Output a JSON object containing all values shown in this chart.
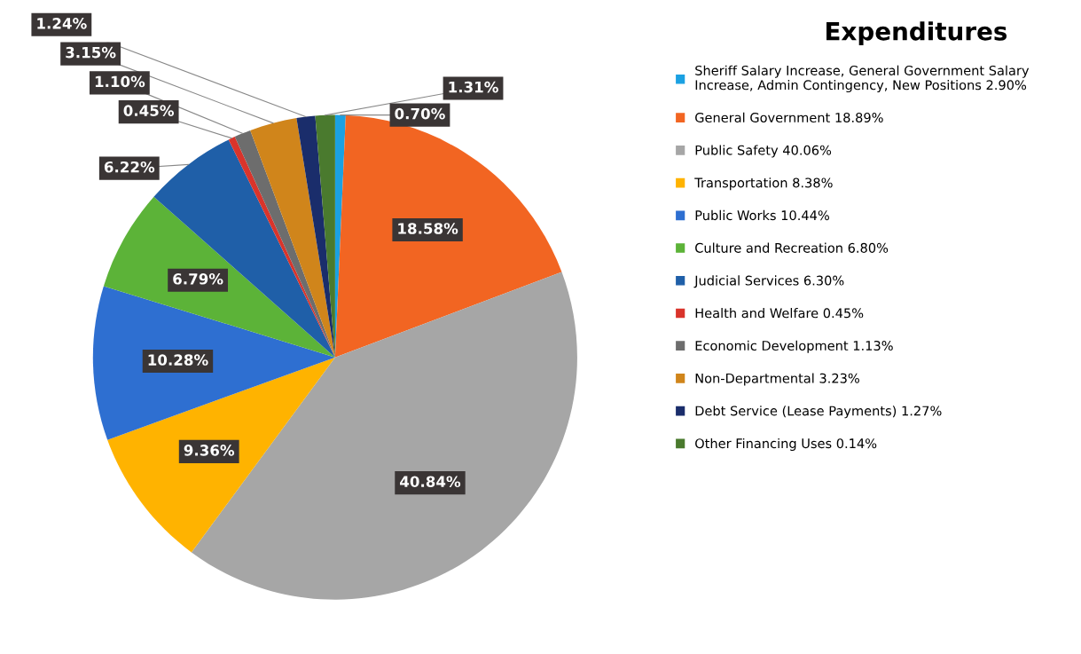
{
  "chart_data": {
    "type": "pie",
    "legend_title": "Expenditures",
    "categories": [
      "Sheriff Salary Increase, General Government Salary Increase, Admin Contingency, New Positions 2.90%",
      "General Government 18.89%",
      "Public Safety 40.06%",
      "Transportation 8.38%",
      "Public Works 10.44%",
      "Culture and Recreation 6.80%",
      "Judicial Services 6.30%",
      "Health and Welfare 0.45%",
      "Economic Development 1.13%",
      "Non-Departmental 3.23%",
      "Debt Service (Lease Payments) 1.27%",
      "Other Financing Uses 0.14%"
    ],
    "values": [
      0.7,
      18.58,
      40.84,
      9.36,
      10.28,
      6.79,
      6.22,
      0.45,
      1.1,
      3.15,
      1.24,
      1.31
    ],
    "value_labels": [
      "0.70%",
      "18.58%",
      "40.84%",
      "9.36%",
      "10.28%",
      "6.79%",
      "6.22%",
      "0.45%",
      "1.10%",
      "3.15%",
      "1.24%",
      "1.31%"
    ],
    "colors": [
      "#1ba1e2",
      "#f26522",
      "#a6a6a6",
      "#ffb300",
      "#2e6fd1",
      "#5cb338",
      "#1f5fa8",
      "#d9342b",
      "#6d6d6d",
      "#d0851b",
      "#1a2d6b",
      "#4a7a2e"
    ],
    "legend": "right"
  }
}
